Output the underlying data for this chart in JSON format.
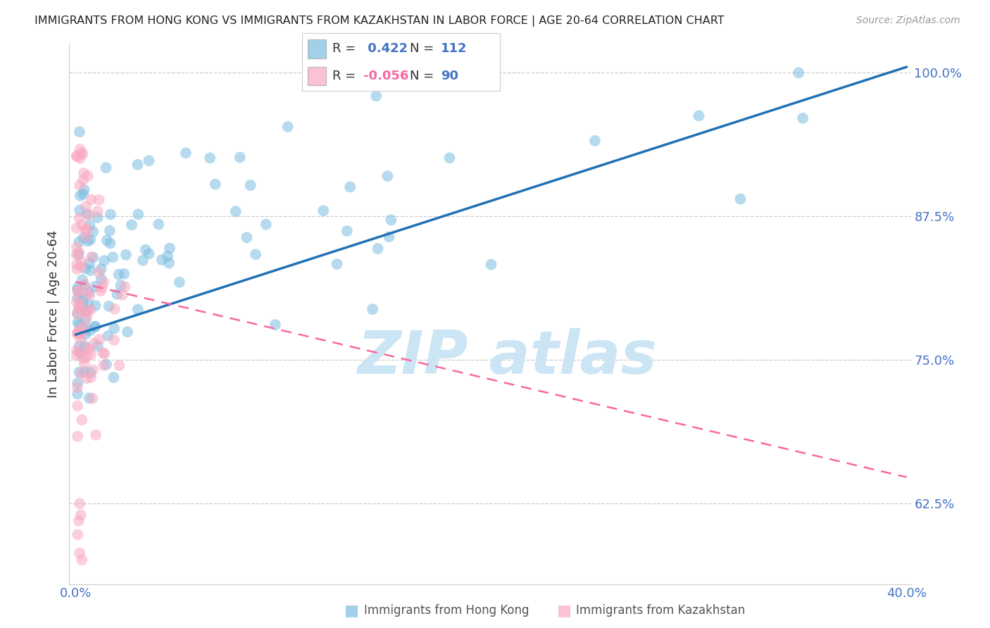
{
  "title": "IMMIGRANTS FROM HONG KONG VS IMMIGRANTS FROM KAZAKHSTAN IN LABOR FORCE | AGE 20-64 CORRELATION CHART",
  "source": "Source: ZipAtlas.com",
  "ylabel": "In Labor Force | Age 20-64",
  "xlim": [
    -0.003,
    0.402
  ],
  "ylim": [
    0.555,
    1.025
  ],
  "hk_R": 0.422,
  "hk_N": 112,
  "kz_R": -0.056,
  "kz_N": 90,
  "hk_color": "#7bbde0",
  "kz_color": "#f9a8c0",
  "hk_trend_color": "#2171b5",
  "kz_trend_color": "#f768a1",
  "legend_title_hk": "Immigrants from Hong Kong",
  "legend_title_kz": "Immigrants from Kazakhstan",
  "ytick_positions": [
    0.625,
    0.75,
    0.875,
    1.0
  ],
  "ytick_labels": [
    "62.5%",
    "75.0%",
    "87.5%",
    "100.0%"
  ],
  "xtick_positions": [
    0.0,
    0.4
  ],
  "xtick_labels": [
    "0.0%",
    "40.0%"
  ],
  "hk_trend_x0": 0.0,
  "hk_trend_x1": 0.4,
  "hk_trend_y0": 0.772,
  "hk_trend_y1": 1.005,
  "kz_trend_x0": 0.0,
  "kz_trend_x1": 0.4,
  "kz_trend_y0": 0.818,
  "kz_trend_y1": 0.648,
  "tick_color": "#4472c4",
  "watermark_color": "#cce5f5"
}
